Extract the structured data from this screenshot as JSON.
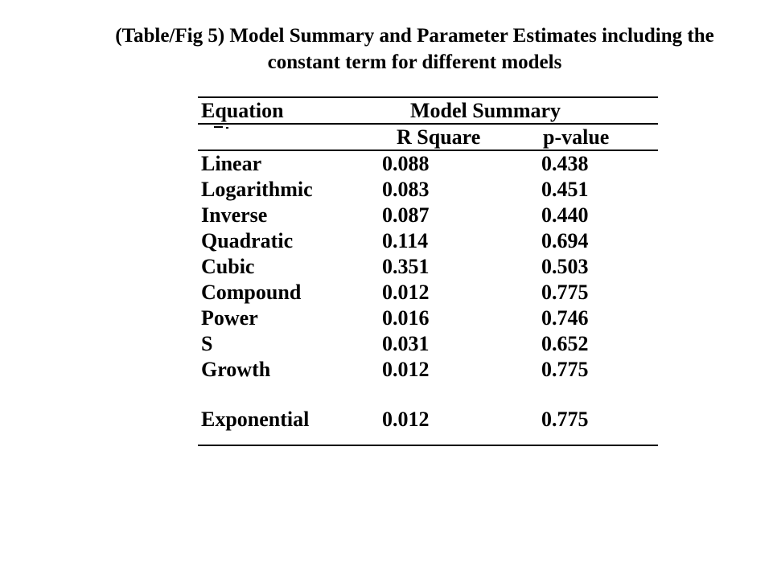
{
  "page": {
    "background": "#ffffff",
    "text_color": "#000000",
    "rule_color": "#000000"
  },
  "title": {
    "line1": "(Table/Fig 5) Model Summary and Parameter Estimates including the",
    "line2": "constant term for different models"
  },
  "table": {
    "equation_header": "Equation",
    "group_header": "Model Summary",
    "sub_headers": {
      "r_square": "R Square",
      "p_value": "p-value"
    },
    "rows": [
      {
        "equation": "Linear",
        "r_square": "0.088",
        "p_value": "0.438"
      },
      {
        "equation": "Logarithmic",
        "r_square": "0.083",
        "p_value": "0.451"
      },
      {
        "equation": "Inverse",
        "r_square": "0.087",
        "p_value": "0.440"
      },
      {
        "equation": "Quadratic",
        "r_square": "0.114",
        "p_value": "0.694"
      },
      {
        "equation": "Cubic",
        "r_square": "0.351",
        "p_value": "0.503"
      },
      {
        "equation": "Compound",
        "r_square": "0.012",
        "p_value": "0.775"
      },
      {
        "equation": "Power",
        "r_square": "0.016",
        "p_value": "0.746"
      },
      {
        "equation": "S",
        "r_square": "0.031",
        "p_value": "0.652"
      },
      {
        "equation": "Growth",
        "r_square": "0.012",
        "p_value": "0.775"
      },
      {
        "equation": "Exponential",
        "r_square": "0.012",
        "p_value": "0.775"
      }
    ]
  }
}
